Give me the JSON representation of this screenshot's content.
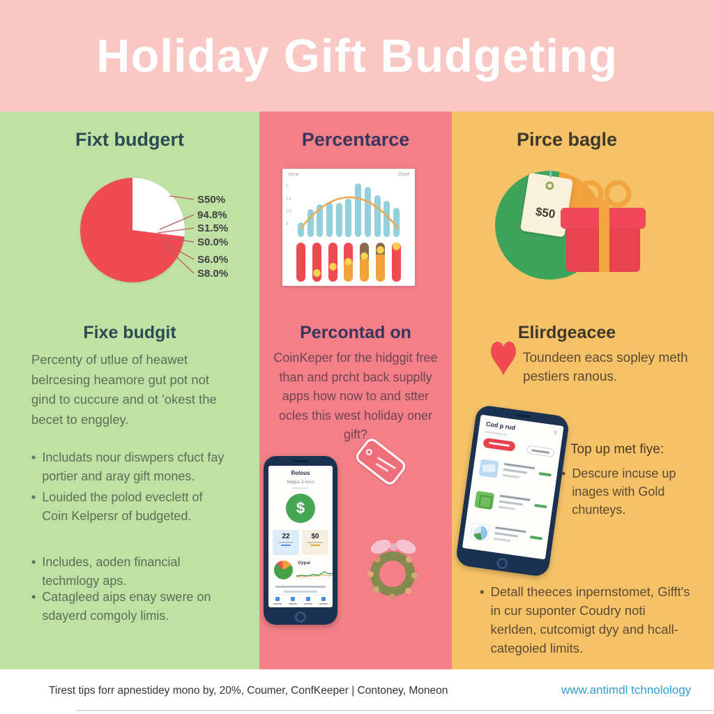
{
  "title": "Holiday Gift Budgeting",
  "green_column": {
    "title": "Fixt budgert",
    "pie_labels": [
      "S50%",
      "94.8%",
      "S1.5%",
      "S0.0%",
      "S6.0%",
      "S8.0%"
    ],
    "section_title": "Fixe budgit",
    "paragraph": "Percenty of utlue of heawet belrcesing heamore gut pot not gind to cuccure and ot 'okest the becet to enggley.",
    "bullets": [
      "Includats nour diswpers cfuct fay portier and aray gift mones.",
      "Louided the polod eveclett of Coin Kelpersr of budgeted.",
      "Includes, aoden financial techmlogy aps.",
      "Catagleed aips enay swere on sdayerd comgoly limis."
    ]
  },
  "pink_column": {
    "title": "Percentarce",
    "section_title": "Percontad on",
    "paragraph": "CoinKeper for the hidggit free than and prcht back supplly apps how now to and stter ocles this west holiday oner gift?",
    "phone": {
      "app_title": "Rolous",
      "app_subtitle": "Mappa Ji Ireco",
      "currency_symbol": "$",
      "stat_left_value": "22",
      "stat_right_value": "$0",
      "chart_label": "Oypal"
    }
  },
  "yellow_column": {
    "title": "Pirce bagle",
    "price_tag_value": "$50",
    "section_title": "Elirdgeacee",
    "lead_text": "Toundeen eacs sopley meth pestiers ranous.",
    "phone_header": "Cod p rud",
    "tip_title": "Top up met fiye:",
    "tip_bullet": "Descure incuse up inages with Gold chunteys.",
    "bottom_bullet": "Detall theeces inpernstomet, Gifft's in cur suponter Coudry noti kerlden, cutcomigt dyy and hcall-categoied limits."
  },
  "footer": {
    "source_text": "Tirest tips forr apnestidey mono by, 20%, Coumer, ConfKeeper | Contoney, Moneon",
    "website": "www.antimdl tchnolology"
  },
  "colors": {
    "header_bg": "#f9c8c4",
    "green_bg": "#bfe2a4",
    "pink_bg": "#f37f88",
    "yellow_bg": "#f5c268",
    "accent_red": "#f04a55",
    "accent_orange": "#f0a13c",
    "accent_green": "#3fa45b",
    "link_blue": "#2d9fd6",
    "phone_navy": "#1b3150"
  },
  "chart_data": [
    {
      "type": "pie",
      "title": "Fixt budgert pie",
      "slices": [
        {
          "label": "S50%",
          "value": 27,
          "color": "#ffffff"
        },
        {
          "label": "remainder",
          "value": 73,
          "color": "#f04a55"
        }
      ],
      "callout_labels": [
        "S50%",
        "94.8%",
        "S1.5%",
        "S0.0%",
        "S6.0%",
        "S8.0%"
      ],
      "legend_position": "right"
    },
    {
      "type": "bar",
      "title": "Percentarce bars",
      "values": [
        25,
        48,
        56,
        60,
        58,
        66,
        92,
        86,
        72,
        62,
        50
      ],
      "bar_color": "#92d0dc",
      "arc_color": "#efa94c",
      "corner_labels": [
        "Smw",
        "Dlvef"
      ],
      "y_ticks": [
        "2",
        "14",
        "10",
        "4"
      ],
      "ylim": [
        0,
        100
      ],
      "grid": false
    },
    {
      "type": "bar",
      "title": "progress columns with dots",
      "dot_color": "#fbd24e",
      "bars": [
        {
          "top": "#ee4a52",
          "bottom": "#ee4a52",
          "split": 1,
          "dot": null
        },
        {
          "top": "#ee4a52",
          "bottom": "#ee4a52",
          "split": 1,
          "dot": 0.84
        },
        {
          "top": "#ee4a52",
          "bottom": "#ee4a52",
          "split": 1,
          "dot": 0.64
        },
        {
          "top": "#ee4a52",
          "bottom": "#f3a33c",
          "split": 0.5,
          "dot": 0.48
        },
        {
          "top": "#8a6b4e",
          "bottom": "#f3a33c",
          "split": 0.42,
          "dot": 0.3
        },
        {
          "top": "#8a6b4e",
          "bottom": "#f3a33c",
          "split": 0.3,
          "dot": 0.12
        },
        {
          "top": "#ee4a52",
          "bottom": "#ee4a52",
          "split": 1,
          "dot": 0.0
        }
      ]
    },
    {
      "type": "pie",
      "title": "Pirce bagle pie",
      "slices": [
        {
          "label": "green-top",
          "value": 3,
          "color": "#3fa45b"
        },
        {
          "label": "wedge",
          "value": 24,
          "color": "#f0a13c"
        },
        {
          "label": "rest",
          "value": 73,
          "color": "#3fa45b"
        }
      ]
    }
  ]
}
